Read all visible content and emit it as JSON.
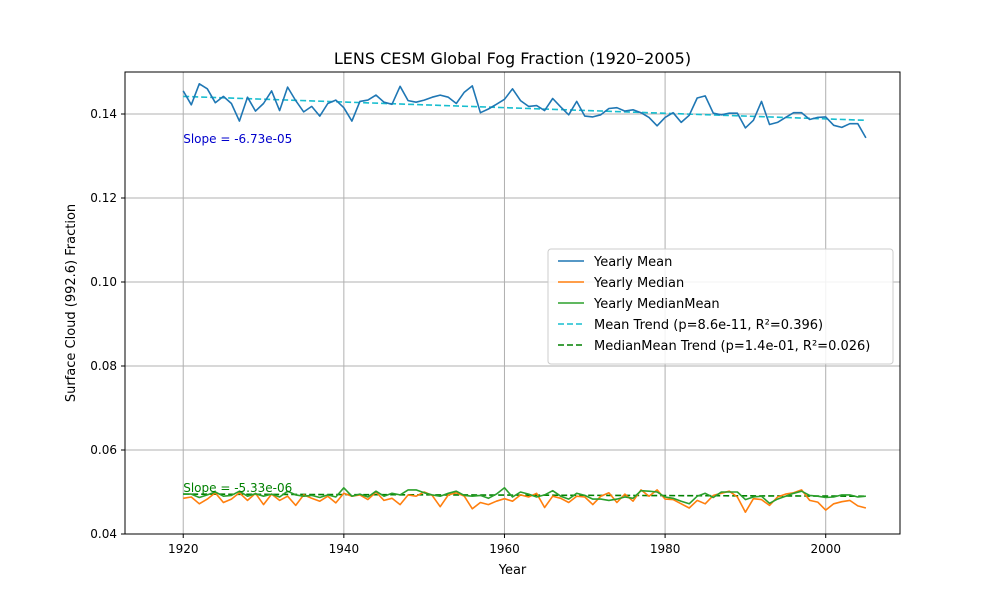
{
  "chart_data": {
    "type": "line",
    "title": "LENS CESM Global Fog Fraction (1920–2005)",
    "xlabel": "Year",
    "ylabel": "Surface Cloud (992.6) Fraction",
    "xlim": [
      1912.75,
      2009.25
    ],
    "ylim": [
      0.04,
      0.15
    ],
    "x_ticks": [
      1920,
      1940,
      1960,
      1980,
      2000
    ],
    "y_ticks": [
      0.04,
      0.06,
      0.08,
      0.1,
      0.12,
      0.14
    ],
    "y_tick_labels": [
      "0.04",
      "0.06",
      "0.08",
      "0.10",
      "0.12",
      "0.14"
    ],
    "grid": true,
    "legend_position": "center-right",
    "years": [
      1920,
      1921,
      1922,
      1923,
      1924,
      1925,
      1926,
      1927,
      1928,
      1929,
      1930,
      1931,
      1932,
      1933,
      1934,
      1935,
      1936,
      1937,
      1938,
      1939,
      1940,
      1941,
      1942,
      1943,
      1944,
      1945,
      1946,
      1947,
      1948,
      1949,
      1950,
      1951,
      1952,
      1953,
      1954,
      1955,
      1956,
      1957,
      1958,
      1959,
      1960,
      1961,
      1962,
      1963,
      1964,
      1965,
      1966,
      1967,
      1968,
      1969,
      1970,
      1971,
      1972,
      1973,
      1974,
      1975,
      1976,
      1977,
      1978,
      1979,
      1980,
      1981,
      1982,
      1983,
      1984,
      1985,
      1986,
      1987,
      1988,
      1989,
      1990,
      1991,
      1992,
      1993,
      1994,
      1995,
      1996,
      1997,
      1998,
      1999,
      2000,
      2001,
      2002,
      2003,
      2004,
      2005
    ],
    "series": [
      {
        "name": "Yearly Mean",
        "style": "solid",
        "color": "#1f77b4",
        "values": [
          0.1455,
          0.1422,
          0.1472,
          0.146,
          0.1427,
          0.1442,
          0.1425,
          0.1383,
          0.144,
          0.1407,
          0.1425,
          0.1455,
          0.1408,
          0.1464,
          0.1432,
          0.1405,
          0.1418,
          0.1395,
          0.1425,
          0.1433,
          0.1415,
          0.1383,
          0.143,
          0.1433,
          0.1445,
          0.1428,
          0.1423,
          0.1466,
          0.1432,
          0.1428,
          0.1433,
          0.144,
          0.1445,
          0.144,
          0.1425,
          0.1452,
          0.1467,
          0.1403,
          0.1412,
          0.1423,
          0.1435,
          0.146,
          0.1432,
          0.1418,
          0.142,
          0.1408,
          0.1437,
          0.1417,
          0.1398,
          0.143,
          0.1395,
          0.1393,
          0.1398,
          0.1413,
          0.1415,
          0.1407,
          0.141,
          0.1403,
          0.1392,
          0.1372,
          0.1392,
          0.1403,
          0.138,
          0.1397,
          0.1438,
          0.1443,
          0.1402,
          0.1398,
          0.1402,
          0.1402,
          0.1367,
          0.1385,
          0.143,
          0.1375,
          0.138,
          0.1392,
          0.1403,
          0.1403,
          0.1387,
          0.1392,
          0.1393,
          0.1373,
          0.1368,
          0.1377,
          0.1377,
          0.1343
        ]
      },
      {
        "name": "Yearly Median",
        "style": "solid",
        "color": "#ff7f0e",
        "values": [
          0.0485,
          0.0488,
          0.0472,
          0.0483,
          0.0498,
          0.0475,
          0.0483,
          0.0498,
          0.048,
          0.0497,
          0.047,
          0.0495,
          0.048,
          0.049,
          0.0468,
          0.0493,
          0.0485,
          0.0478,
          0.049,
          0.0474,
          0.0497,
          0.049,
          0.0493,
          0.0482,
          0.05,
          0.048,
          0.0485,
          0.047,
          0.0493,
          0.049,
          0.05,
          0.0492,
          0.0465,
          0.0493,
          0.0498,
          0.049,
          0.046,
          0.0475,
          0.047,
          0.0478,
          0.0484,
          0.0478,
          0.0493,
          0.0488,
          0.0497,
          0.0463,
          0.049,
          0.0485,
          0.0475,
          0.049,
          0.0488,
          0.047,
          0.049,
          0.0498,
          0.0475,
          0.0495,
          0.0478,
          0.0505,
          0.049,
          0.0505,
          0.0483,
          0.0482,
          0.0472,
          0.0462,
          0.048,
          0.0472,
          0.0492,
          0.0497,
          0.0502,
          0.0488,
          0.0452,
          0.0484,
          0.0482,
          0.0468,
          0.0488,
          0.0495,
          0.0498,
          0.0505,
          0.048,
          0.0476,
          0.0457,
          0.0472,
          0.0477,
          0.048,
          0.0467,
          0.0462
        ]
      },
      {
        "name": "Yearly MedianMean",
        "style": "solid",
        "color": "#2ca02c",
        "values": [
          0.0495,
          0.0495,
          0.0487,
          0.0493,
          0.05,
          0.049,
          0.0492,
          0.0502,
          0.049,
          0.0496,
          0.049,
          0.0495,
          0.0488,
          0.0502,
          0.0493,
          0.049,
          0.0492,
          0.0487,
          0.0493,
          0.0488,
          0.051,
          0.049,
          0.0495,
          0.0488,
          0.0502,
          0.049,
          0.0497,
          0.0493,
          0.0505,
          0.0505,
          0.0498,
          0.0493,
          0.049,
          0.0497,
          0.0502,
          0.0492,
          0.049,
          0.0492,
          0.0485,
          0.0495,
          0.051,
          0.0488,
          0.05,
          0.0495,
          0.0488,
          0.0493,
          0.0503,
          0.049,
          0.0483,
          0.0497,
          0.0492,
          0.0483,
          0.0483,
          0.048,
          0.0483,
          0.0488,
          0.0485,
          0.0503,
          0.0502,
          0.05,
          0.0488,
          0.0485,
          0.0478,
          0.0472,
          0.049,
          0.0497,
          0.0487,
          0.05,
          0.05,
          0.05,
          0.0482,
          0.0488,
          0.049,
          0.0473,
          0.0483,
          0.049,
          0.0497,
          0.0502,
          0.0492,
          0.049,
          0.0487,
          0.0488,
          0.0493,
          0.0493,
          0.0488,
          0.049
        ]
      },
      {
        "name": "Mean Trend (p=8.6e-11, R²=0.396)",
        "style": "dashed",
        "color": "#17becf",
        "trend": {
          "x": [
            1920,
            2005
          ],
          "y": [
            0.1442,
            0.1385
          ]
        }
      },
      {
        "name": "MedianMean Trend (p=1.4e-01, R²=0.026)",
        "style": "dashed",
        "color": "#008000",
        "trend": {
          "x": [
            1920,
            2005
          ],
          "y": [
            0.0495,
            0.049
          ]
        }
      }
    ],
    "annotations": [
      {
        "text": "Slope = -6.73e-05",
        "x": 1920,
        "y": 0.134,
        "color": "#0000cc"
      },
      {
        "text": "Slope = -5.33e-06",
        "x": 1920,
        "y": 0.051,
        "color": "#008000"
      }
    ]
  }
}
